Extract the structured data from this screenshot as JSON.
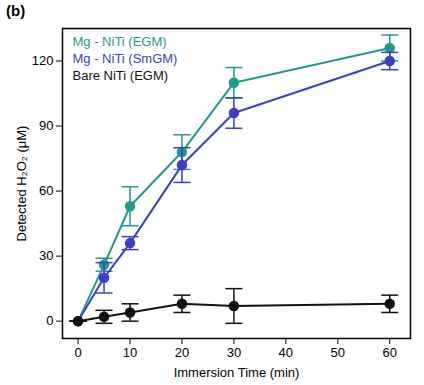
{
  "chart_data": {
    "type": "line",
    "title": "(b)",
    "x_label": "Immersion Time (min)",
    "y_label": "Detected H₂O₂ (μM)",
    "x": [
      0,
      5,
      10,
      20,
      30,
      60
    ],
    "series": [
      {
        "name": "Mg - NiTi (EGM)",
        "color": "#1f9a8c",
        "values": [
          0,
          26,
          53,
          78,
          110,
          126
        ],
        "errors": [
          0,
          3,
          9,
          8,
          7,
          6
        ]
      },
      {
        "name": "Mg - NiTi (SmGM)",
        "color": "#3b3fc4",
        "values": [
          0,
          20,
          36,
          72,
          96,
          120
        ],
        "errors": [
          0,
          7,
          3,
          8,
          7,
          4
        ]
      },
      {
        "name": "Bare NiTi (EGM)",
        "color": "#111111",
        "values": [
          0,
          2,
          4,
          8,
          7,
          8
        ],
        "errors": [
          0,
          3,
          4,
          4,
          8,
          4
        ]
      }
    ],
    "xlim": [
      -3,
      64
    ],
    "xticks": [
      0,
      10,
      20,
      30,
      40,
      50,
      60
    ],
    "ylim": [
      -8,
      135
    ],
    "yticks": [
      0,
      30,
      60,
      90,
      120
    ],
    "grid": false,
    "legend": "upper left",
    "marker": "circle"
  }
}
